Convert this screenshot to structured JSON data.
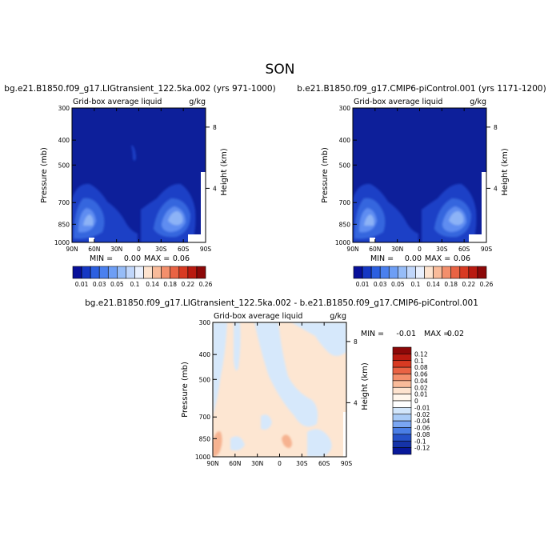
{
  "figure": {
    "title": "SON"
  },
  "colors": {
    "panel_bg_blue": "#0d1f9a",
    "diff_bg": "#fde6d2"
  },
  "chart_data": [
    {
      "type": "heatmap",
      "title": "bg.e21.B1850.f09_g17.LIGtransient_122.5ka.002 (yrs 971-1000)",
      "subtitle_left": "Grid-box average liquid",
      "subtitle_right": "g/kg",
      "xlabel": "",
      "ylabel": "Pressure (mb)",
      "ylabel_right": "Height (km)",
      "x_ticks": [
        "90N",
        "60N",
        "30N",
        "0",
        "30S",
        "60S",
        "90S"
      ],
      "y_ticks": [
        "300",
        "400",
        "500",
        "700",
        "850",
        "1000"
      ],
      "y_ticks_right": [
        "8",
        "4"
      ],
      "min_label": "MIN =",
      "min_value": "0.00",
      "max_label": "MAX =",
      "max_value": "0.06",
      "levels": [
        "0.01",
        "0.03",
        "0.05",
        "0.1",
        "0.14",
        "0.18",
        "0.22",
        "0.26"
      ],
      "colorbar_colors": [
        "#08109a",
        "#1537c4",
        "#2b5fe0",
        "#4a80ef",
        "#6d9ef5",
        "#96bcf7",
        "#c0d6fa",
        "#e9f0fd",
        "#fde3cf",
        "#f9bb9a",
        "#f38f6c",
        "#e96344",
        "#d83a22",
        "#b91a10",
        "#8c0808"
      ],
      "range": [
        0,
        0.06
      ]
    },
    {
      "type": "heatmap",
      "title": "b.e21.B1850.f09_g17.CMIP6-piControl.001 (yrs 1171-1200)",
      "subtitle_left": "Grid-box average liquid",
      "subtitle_right": "g/kg",
      "xlabel": "",
      "ylabel": "Pressure (mb)",
      "ylabel_right": "Height (km)",
      "x_ticks": [
        "90N",
        "60N",
        "30N",
        "0",
        "30S",
        "60S",
        "90S"
      ],
      "y_ticks": [
        "300",
        "400",
        "500",
        "700",
        "850",
        "1000"
      ],
      "y_ticks_right": [
        "8",
        "4"
      ],
      "min_label": "MIN =",
      "min_value": "0.00",
      "max_label": "MAX =",
      "max_value": "0.06",
      "levels": [
        "0.01",
        "0.03",
        "0.05",
        "0.1",
        "0.14",
        "0.18",
        "0.22",
        "0.26"
      ],
      "colorbar_colors": [
        "#08109a",
        "#1537c4",
        "#2b5fe0",
        "#4a80ef",
        "#6d9ef5",
        "#96bcf7",
        "#c0d6fa",
        "#e9f0fd",
        "#fde3cf",
        "#f9bb9a",
        "#f38f6c",
        "#e96344",
        "#d83a22",
        "#b91a10",
        "#8c0808"
      ],
      "range": [
        0,
        0.06
      ]
    },
    {
      "type": "heatmap",
      "title": "bg.e21.B1850.f09_g17.LIGtransient_122.5ka.002 - b.e21.B1850.f09_g17.CMIP6-piControl.001",
      "subtitle_left": "Grid-box average liquid",
      "subtitle_right": "g/kg",
      "xlabel": "",
      "ylabel": "Pressure (mb)",
      "ylabel_right": "Height (km)",
      "x_ticks": [
        "90N",
        "60N",
        "30N",
        "0",
        "30S",
        "60S",
        "90S"
      ],
      "y_ticks": [
        "300",
        "400",
        "500",
        "700",
        "850",
        "1000"
      ],
      "y_ticks_right": [
        "8",
        "4"
      ],
      "min_label": "MIN =",
      "min_value": "-0.01",
      "max_label": "MAX =",
      "max_value": "0.02",
      "levels": [
        "0.12",
        "0.1",
        "0.08",
        "0.06",
        "0.04",
        "0.02",
        "0.01",
        "0",
        "-0.01",
        "-0.02",
        "-0.04",
        "-0.06",
        "-0.08",
        "-0.1",
        "-0.12"
      ],
      "colorbar_colors": [
        "#8c0808",
        "#b91a10",
        "#d83a22",
        "#e96344",
        "#f38f6c",
        "#f9bb9a",
        "#fde3cf",
        "#fff6ec",
        "#ffffff",
        "#d2e6fb",
        "#a9cbf7",
        "#7aa6f2",
        "#4a7ee6",
        "#2551c9",
        "#1533a8",
        "#08189a"
      ],
      "range": [
        -0.01,
        0.02
      ]
    }
  ]
}
